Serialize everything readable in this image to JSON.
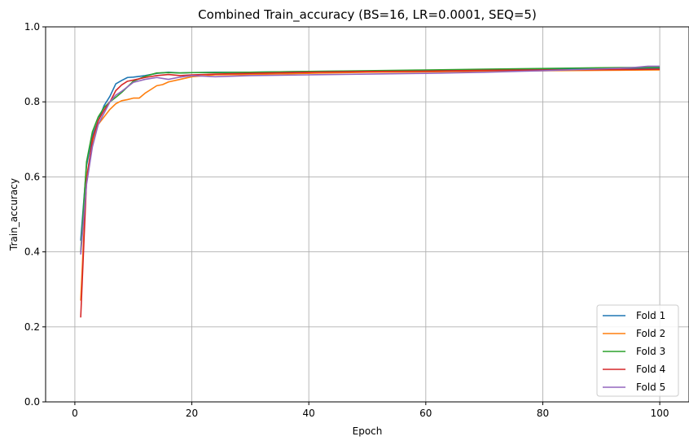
{
  "chart_data": {
    "type": "line",
    "title": "Combined Train_accuracy (BS=16, LR=0.0001, SEQ=5)",
    "xlabel": "Epoch",
    "ylabel": "Train_accuracy",
    "xlim": [
      -5,
      105
    ],
    "ylim": [
      0.0,
      1.0
    ],
    "xticks": [
      0,
      20,
      40,
      60,
      80,
      100
    ],
    "yticks": [
      0.0,
      0.2,
      0.4,
      0.6,
      0.8,
      1.0
    ],
    "xtick_labels": [
      "0",
      "20",
      "40",
      "60",
      "80",
      "100"
    ],
    "ytick_labels": [
      "0.0",
      "0.2",
      "0.4",
      "0.6",
      "0.8",
      "1.0"
    ],
    "grid": true,
    "legend_position": "lower-right",
    "series": [
      {
        "name": "Fold 1",
        "color": "#1f77b4",
        "points": [
          [
            1,
            0.43
          ],
          [
            2,
            0.63
          ],
          [
            3,
            0.71
          ],
          [
            4,
            0.75
          ],
          [
            5,
            0.79
          ],
          [
            6,
            0.815
          ],
          [
            7,
            0.848
          ],
          [
            8,
            0.857
          ],
          [
            9,
            0.865
          ],
          [
            10,
            0.866
          ],
          [
            12,
            0.87
          ],
          [
            14,
            0.876
          ],
          [
            16,
            0.879
          ],
          [
            18,
            0.877
          ],
          [
            20,
            0.878
          ],
          [
            24,
            0.879
          ],
          [
            30,
            0.879
          ],
          [
            40,
            0.881
          ],
          [
            50,
            0.882
          ],
          [
            60,
            0.883
          ],
          [
            70,
            0.885
          ],
          [
            80,
            0.887
          ],
          [
            90,
            0.889
          ],
          [
            100,
            0.89
          ]
        ]
      },
      {
        "name": "Fold 2",
        "color": "#ff7f0e",
        "points": [
          [
            1,
            0.27
          ],
          [
            2,
            0.6
          ],
          [
            3,
            0.69
          ],
          [
            4,
            0.74
          ],
          [
            5,
            0.76
          ],
          [
            6,
            0.78
          ],
          [
            7,
            0.795
          ],
          [
            8,
            0.803
          ],
          [
            9,
            0.806
          ],
          [
            10,
            0.81
          ],
          [
            11,
            0.81
          ],
          [
            12,
            0.823
          ],
          [
            13,
            0.833
          ],
          [
            14,
            0.843
          ],
          [
            15,
            0.846
          ],
          [
            16,
            0.853
          ],
          [
            18,
            0.86
          ],
          [
            20,
            0.867
          ],
          [
            24,
            0.872
          ],
          [
            30,
            0.873
          ],
          [
            40,
            0.876
          ],
          [
            50,
            0.879
          ],
          [
            60,
            0.88
          ],
          [
            70,
            0.882
          ],
          [
            80,
            0.883
          ],
          [
            90,
            0.884
          ],
          [
            100,
            0.885
          ]
        ]
      },
      {
        "name": "Fold 3",
        "color": "#2ca02c",
        "points": [
          [
            1,
            0.4
          ],
          [
            2,
            0.64
          ],
          [
            3,
            0.72
          ],
          [
            4,
            0.76
          ],
          [
            5,
            0.785
          ],
          [
            6,
            0.8
          ],
          [
            7,
            0.812
          ],
          [
            8,
            0.825
          ],
          [
            9,
            0.84
          ],
          [
            10,
            0.855
          ],
          [
            12,
            0.868
          ],
          [
            14,
            0.877
          ],
          [
            16,
            0.878
          ],
          [
            18,
            0.877
          ],
          [
            20,
            0.878
          ],
          [
            24,
            0.878
          ],
          [
            30,
            0.879
          ],
          [
            40,
            0.881
          ],
          [
            50,
            0.883
          ],
          [
            60,
            0.885
          ],
          [
            70,
            0.887
          ],
          [
            80,
            0.889
          ],
          [
            90,
            0.891
          ],
          [
            100,
            0.892
          ]
        ]
      },
      {
        "name": "Fold 4",
        "color": "#d62728",
        "points": [
          [
            1,
            0.225
          ],
          [
            2,
            0.59
          ],
          [
            3,
            0.7
          ],
          [
            4,
            0.75
          ],
          [
            5,
            0.778
          ],
          [
            6,
            0.8
          ],
          [
            7,
            0.83
          ],
          [
            8,
            0.845
          ],
          [
            9,
            0.855
          ],
          [
            10,
            0.858
          ],
          [
            12,
            0.865
          ],
          [
            14,
            0.87
          ],
          [
            16,
            0.873
          ],
          [
            18,
            0.87
          ],
          [
            20,
            0.872
          ],
          [
            24,
            0.874
          ],
          [
            30,
            0.876
          ],
          [
            40,
            0.879
          ],
          [
            50,
            0.881
          ],
          [
            60,
            0.882
          ],
          [
            70,
            0.884
          ],
          [
            80,
            0.885
          ],
          [
            90,
            0.886
          ],
          [
            100,
            0.887
          ]
        ]
      },
      {
        "name": "Fold 5",
        "color": "#9467bd",
        "points": [
          [
            1,
            0.393
          ],
          [
            2,
            0.58
          ],
          [
            3,
            0.68
          ],
          [
            4,
            0.74
          ],
          [
            5,
            0.77
          ],
          [
            6,
            0.8
          ],
          [
            7,
            0.818
          ],
          [
            8,
            0.828
          ],
          [
            9,
            0.84
          ],
          [
            10,
            0.852
          ],
          [
            12,
            0.86
          ],
          [
            14,
            0.865
          ],
          [
            16,
            0.86
          ],
          [
            18,
            0.866
          ],
          [
            20,
            0.87
          ],
          [
            24,
            0.867
          ],
          [
            30,
            0.87
          ],
          [
            40,
            0.872
          ],
          [
            50,
            0.874
          ],
          [
            60,
            0.876
          ],
          [
            70,
            0.879
          ],
          [
            80,
            0.883
          ],
          [
            90,
            0.888
          ],
          [
            95,
            0.891
          ],
          [
            98,
            0.895
          ],
          [
            100,
            0.895
          ]
        ]
      }
    ]
  }
}
